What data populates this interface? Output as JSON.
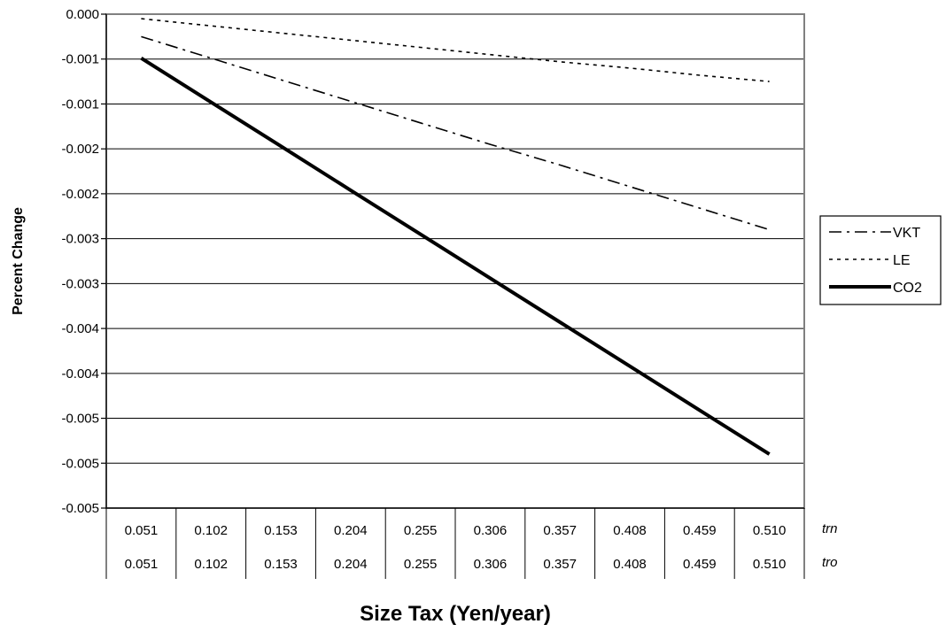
{
  "chart_data": {
    "type": "line",
    "title": "",
    "xlabel": "Size Tax (Yen/year)",
    "ylabel": "Percent Change",
    "ylim": [
      -0.0055,
      0.0
    ],
    "yticks": [
      0.0,
      -0.0005,
      -0.001,
      -0.0015,
      -0.002,
      -0.0025,
      -0.003,
      -0.0035,
      -0.004,
      -0.0045,
      -0.005,
      -0.0055
    ],
    "ytick_labels": [
      "0.000",
      "-0.001",
      "-0.001",
      "-0.002",
      "-0.002",
      "-0.003",
      "-0.003",
      "-0.004",
      "-0.004",
      "-0.005",
      "-0.005",
      "-0.005"
    ],
    "grid": "horizontal",
    "legend_position": "right",
    "category_rows": [
      {
        "label": "trn",
        "values": [
          "0.051",
          "0.102",
          "0.153",
          "0.204",
          "0.255",
          "0.306",
          "0.357",
          "0.408",
          "0.459",
          "0.510"
        ]
      },
      {
        "label": "tro",
        "values": [
          "0.051",
          "0.102",
          "0.153",
          "0.204",
          "0.255",
          "0.306",
          "0.357",
          "0.408",
          "0.459",
          "0.510"
        ]
      }
    ],
    "series": [
      {
        "name": "VKT",
        "style": "dash-dot",
        "width": 1.6,
        "color": "#000000",
        "values": [
          -0.00025,
          -0.00049,
          -0.00073,
          -0.00097,
          -0.00121,
          -0.00145,
          -0.00168,
          -0.00192,
          -0.00216,
          -0.0024
        ]
      },
      {
        "name": "LE",
        "style": "dotted",
        "width": 1.6,
        "color": "#000000",
        "values": [
          -5e-05,
          -0.00013,
          -0.00021,
          -0.00029,
          -0.00037,
          -0.00045,
          -0.00053,
          -0.0006,
          -0.00068,
          -0.00075
        ]
      },
      {
        "name": "CO2",
        "style": "solid",
        "width": 4,
        "color": "#000000",
        "values": [
          -0.00049,
          -0.00098,
          -0.00147,
          -0.00196,
          -0.00245,
          -0.00294,
          -0.00343,
          -0.00392,
          -0.00441,
          -0.0049
        ]
      }
    ]
  }
}
